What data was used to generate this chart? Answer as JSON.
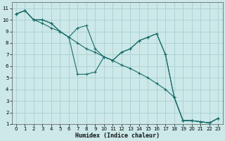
{
  "xlabel": "Humidex (Indice chaleur)",
  "bg_color": "#cce8e8",
  "grid_color": "#aacfcf",
  "line_color": "#1a6b6b",
  "xlim": [
    -0.5,
    23.5
  ],
  "ylim": [
    1,
    11.5
  ],
  "xticks": [
    0,
    1,
    2,
    3,
    4,
    5,
    6,
    7,
    8,
    9,
    10,
    11,
    12,
    13,
    14,
    15,
    16,
    17,
    18,
    19,
    20,
    21,
    22,
    23
  ],
  "yticks": [
    1,
    2,
    3,
    4,
    5,
    6,
    7,
    8,
    9,
    10,
    11
  ],
  "line1_x": [
    0,
    1,
    2,
    3,
    4,
    5,
    6,
    7,
    8,
    9,
    10,
    11,
    12,
    13,
    14,
    15,
    16,
    17,
    18,
    19,
    20,
    21,
    22,
    23
  ],
  "line1_y": [
    10.5,
    10.8,
    10.0,
    10.0,
    9.7,
    9.0,
    8.5,
    8.0,
    7.5,
    7.2,
    6.8,
    6.5,
    6.1,
    5.8,
    5.4,
    5.0,
    4.5,
    4.0,
    3.3,
    1.3,
    1.3,
    1.2,
    1.1,
    1.5
  ],
  "line2_x": [
    0,
    1,
    2,
    3,
    4,
    5,
    6,
    7,
    8,
    9,
    10,
    11,
    12,
    13,
    14,
    15,
    16,
    17,
    18,
    19,
    20,
    21,
    22,
    23
  ],
  "line2_y": [
    10.5,
    10.8,
    10.0,
    10.0,
    9.7,
    9.0,
    8.5,
    5.3,
    5.3,
    5.5,
    6.8,
    6.5,
    7.2,
    7.5,
    8.2,
    8.5,
    8.8,
    7.0,
    3.3,
    1.3,
    1.3,
    1.2,
    1.1,
    1.5
  ],
  "line3_x": [
    0,
    1,
    2,
    3,
    4,
    5,
    6,
    7,
    8,
    9,
    10,
    11,
    12,
    13,
    14,
    15,
    16,
    17,
    18,
    19,
    20,
    21,
    22,
    23
  ],
  "line3_y": [
    10.5,
    10.8,
    10.0,
    9.7,
    9.3,
    9.0,
    8.5,
    9.3,
    9.5,
    7.5,
    6.8,
    6.5,
    7.2,
    7.5,
    8.2,
    8.5,
    8.8,
    7.0,
    3.3,
    1.3,
    1.3,
    1.2,
    1.1,
    1.5
  ]
}
